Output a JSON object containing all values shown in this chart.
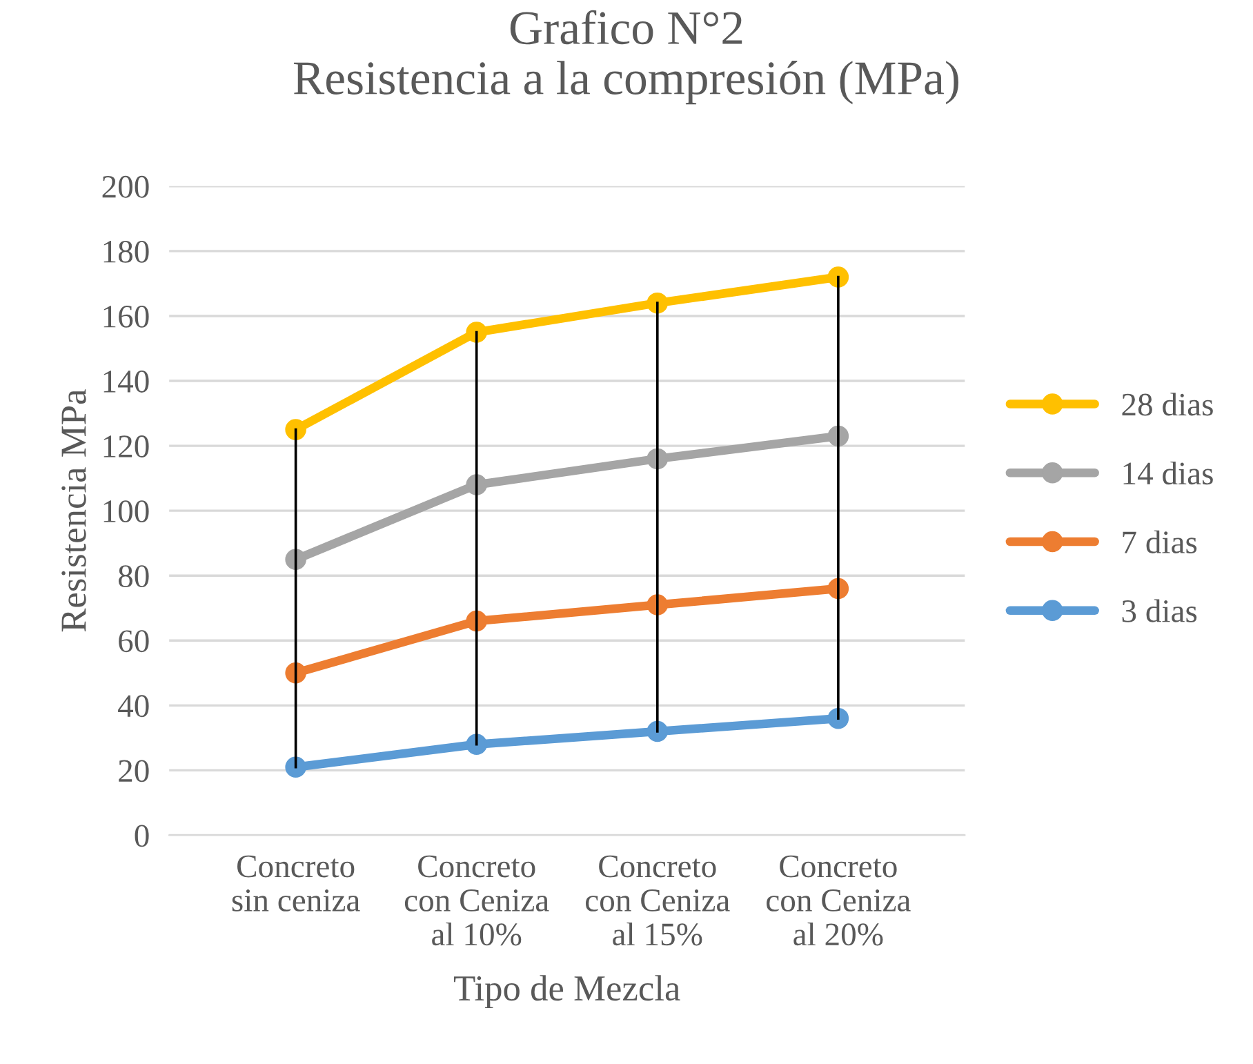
{
  "chart_data": {
    "type": "line",
    "title": "Grafico N°2\nResistencia a la compresión (MPa)",
    "xlabel": "Tipo de Mezcla",
    "ylabel": "Resistencia MPa",
    "categories": [
      "Concreto\nsin ceniza",
      "Concreto\ncon Ceniza\nal 10%",
      "Concreto\ncon Ceniza\nal 15%",
      "Concreto\ncon Ceniza\nal 20%"
    ],
    "series": [
      {
        "name": "28 dias",
        "color": "#ffc000",
        "values": [
          125,
          155,
          164,
          172
        ],
        "errors": [
          [
            21,
            125
          ],
          [
            28,
            155
          ],
          [
            32,
            164
          ],
          [
            36,
            172
          ]
        ]
      },
      {
        "name": "14 dias",
        "color": "#a5a5a5",
        "values": [
          85,
          108,
          116,
          123
        ]
      },
      {
        "name": "7 dias",
        "color": "#ed7d31",
        "values": [
          50,
          66,
          71,
          76
        ]
      },
      {
        "name": "3 dias",
        "color": "#5b9bd5",
        "values": [
          21,
          28,
          32,
          36
        ]
      }
    ],
    "ylim": [
      0,
      200
    ],
    "yticks": [
      0,
      20,
      40,
      60,
      80,
      100,
      120,
      140,
      160,
      180,
      200
    ],
    "grid": "y",
    "legend": "right",
    "marker": "circle",
    "line_style": "solid"
  }
}
